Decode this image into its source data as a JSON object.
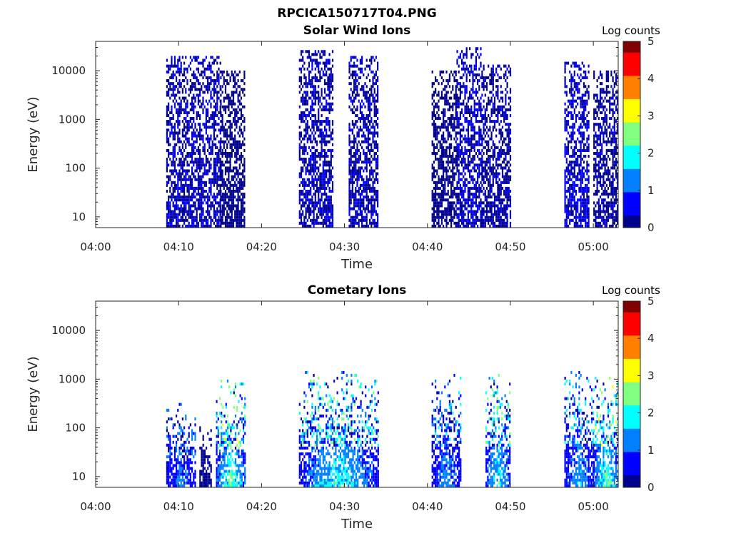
{
  "figure": {
    "title": "RPCICA150717T04.PNG"
  },
  "colormap": [
    "#00008f",
    "#0000ff",
    "#0080ff",
    "#00ffff",
    "#80ff80",
    "#ffff00",
    "#ff8000",
    "#ff0000",
    "#800000"
  ],
  "chart_data": [
    {
      "type": "heatmap",
      "title": "Solar Wind Ions",
      "xlabel": "Time",
      "ylabel": "Energy (eV)",
      "xticks": [
        "04:00",
        "04:10",
        "04:20",
        "04:30",
        "04:40",
        "04:50",
        "05:00"
      ],
      "xlim_minutes": [
        0,
        63
      ],
      "yscale": "log",
      "ylim": [
        6,
        40000
      ],
      "yticks": [
        10,
        100,
        1000,
        10000
      ],
      "ytick_labels": [
        "10",
        "100",
        "1000",
        "10000"
      ],
      "colorbar": {
        "label": "Log counts",
        "range": [
          0,
          5
        ],
        "ticks": [
          "0",
          "1",
          "2",
          "3",
          "4",
          "5"
        ]
      },
      "bursts": [
        {
          "start_min": 8.5,
          "end_min": 15.0,
          "emax_eV": 20000,
          "peak_log_counts": 0.5
        },
        {
          "start_min": 15.0,
          "end_min": 18.0,
          "emax_eV": 10000,
          "peak_log_counts": 0.3
        },
        {
          "start_min": 24.5,
          "end_min": 28.5,
          "emax_eV": 25000,
          "peak_log_counts": 0.5
        },
        {
          "start_min": 30.5,
          "end_min": 34.0,
          "emax_eV": 20000,
          "peak_log_counts": 0.5
        },
        {
          "start_min": 40.5,
          "end_min": 43.5,
          "emax_eV": 10000,
          "peak_log_counts": 0.3
        },
        {
          "start_min": 43.5,
          "end_min": 46.5,
          "emax_eV": 30000,
          "peak_log_counts": 0.6
        },
        {
          "start_min": 46.5,
          "end_min": 50.0,
          "emax_eV": 12000,
          "peak_log_counts": 0.4
        },
        {
          "start_min": 56.5,
          "end_min": 59.5,
          "emax_eV": 15000,
          "peak_log_counts": 0.8
        },
        {
          "start_min": 60.0,
          "end_min": 63.0,
          "emax_eV": 10000,
          "peak_log_counts": 0.4
        }
      ]
    },
    {
      "type": "heatmap",
      "title": "Cometary Ions",
      "xlabel": "Time",
      "ylabel": "Energy (eV)",
      "xticks": [
        "04:00",
        "04:10",
        "04:20",
        "04:30",
        "04:40",
        "04:50",
        "05:00"
      ],
      "xlim_minutes": [
        0,
        63
      ],
      "yscale": "log",
      "ylim": [
        6,
        40000
      ],
      "yticks": [
        10,
        100,
        1000,
        10000
      ],
      "ytick_labels": [
        "10",
        "100",
        "1000",
        "10000"
      ],
      "colorbar": {
        "label": "Log counts",
        "range": [
          0,
          5
        ],
        "ticks": [
          "0",
          "1",
          "2",
          "3",
          "4",
          "5"
        ]
      },
      "bursts": [
        {
          "start_min": 8.5,
          "end_min": 12.0,
          "emax_eV": 300,
          "peak_log_counts": 1.5
        },
        {
          "start_min": 12.5,
          "end_min": 14.0,
          "emax_eV": 100,
          "peak_log_counts": 0.4
        },
        {
          "start_min": 14.5,
          "end_min": 18.0,
          "emax_eV": 900,
          "peak_log_counts": 3.0
        },
        {
          "start_min": 24.5,
          "end_min": 34.0,
          "emax_eV": 1300,
          "peak_log_counts": 2.5
        },
        {
          "start_min": 40.5,
          "end_min": 44.0,
          "emax_eV": 1200,
          "peak_log_counts": 1.8
        },
        {
          "start_min": 47.0,
          "end_min": 50.0,
          "emax_eV": 1200,
          "peak_log_counts": 2.5
        },
        {
          "start_min": 56.5,
          "end_min": 60.0,
          "emax_eV": 1500,
          "peak_log_counts": 2.0
        },
        {
          "start_min": 60.0,
          "end_min": 63.0,
          "emax_eV": 1000,
          "peak_log_counts": 3.0
        }
      ]
    }
  ]
}
